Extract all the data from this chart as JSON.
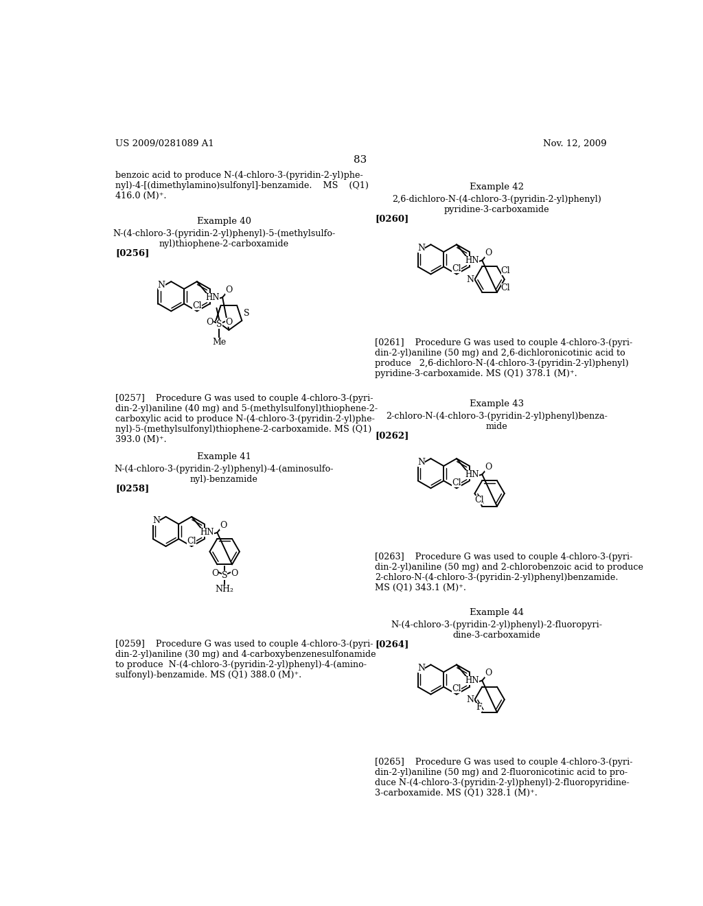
{
  "page_number": "83",
  "header_left": "US 2009/0281089 A1",
  "header_right": "Nov. 12, 2009",
  "background_color": "#ffffff",
  "text_color": "#000000",
  "left_column": {
    "intro_text": "benzoic acid to produce N-(4-chloro-3-(pyridin-2-yl)phe-\nnyl)-4-[(dimethylamino)sulfonyl]-benzamide.    MS    (Q1)\n416.0 (M)⁺.",
    "example40_title": "Example 40",
    "example40_name": "N-(4-chloro-3-(pyridin-2-yl)phenyl)-5-(methylsulfo-\nnyl)thiophene-2-carboxamide",
    "example40_ref": "[0256]",
    "example40_desc": "[0257]    Procedure G was used to couple 4-chloro-3-(pyri-\ndin-2-yl)aniline (40 mg) and 5-(methylsulfonyl)thiophene-2-\ncarboxylic acid to produce N-(4-chloro-3-(pyridin-2-yl)phe-\nnyl)-5-(methylsulfonyl)thiophene-2-carboxamide. MS (Q1)\n393.0 (M)⁺.",
    "example41_title": "Example 41",
    "example41_name": "N-(4-chloro-3-(pyridin-2-yl)phenyl)-4-(aminosulfo-\nnyl)-benzamide",
    "example41_ref": "[0258]",
    "example41_desc": "[0259]    Procedure G was used to couple 4-chloro-3-(pyri-\ndin-2-yl)aniline (30 mg) and 4-carboxybenzenesulfonamide\nto produce  N-(4-chloro-3-(pyridin-2-yl)phenyl)-4-(amino-\nsulfonyl)-benzamide. MS (Q1) 388.0 (M)⁺."
  },
  "right_column": {
    "example42_title": "Example 42",
    "example42_name": "2,6-dichloro-N-(4-chloro-3-(pyridin-2-yl)phenyl)\npyridine-3-carboxamide",
    "example42_ref": "[0260]",
    "example42_desc": "[0261]    Procedure G was used to couple 4-chloro-3-(pyri-\ndin-2-yl)aniline (50 mg) and 2,6-dichloronicotinic acid to\nproduce   2,6-dichloro-N-(4-chloro-3-(pyridin-2-yl)phenyl)\npyridine-3-carboxamide. MS (Q1) 378.1 (M)⁺.",
    "example43_title": "Example 43",
    "example43_name": "2-chloro-N-(4-chloro-3-(pyridin-2-yl)phenyl)benza-\nmide",
    "example43_ref": "[0262]",
    "example43_desc": "[0263]    Procedure G was used to couple 4-chloro-3-(pyri-\ndin-2-yl)aniline (50 mg) and 2-chlorobenzoic acid to produce\n2-chloro-N-(4-chloro-3-(pyridin-2-yl)phenyl)benzamide.\nMS (Q1) 343.1 (M)⁺.",
    "example44_title": "Example 44",
    "example44_name": "N-(4-chloro-3-(pyridin-2-yl)phenyl)-2-fluoropyri-\ndine-3-carboxamide",
    "example44_ref": "[0264]",
    "example44_desc": "[0265]    Procedure G was used to couple 4-chloro-3-(pyri-\ndin-2-yl)aniline (50 mg) and 2-fluoronicotinic acid to pro-\nduce N-(4-chloro-3-(pyridin-2-yl)phenyl)-2-fluoropyridine-\n3-carboxamide. MS (Q1) 328.1 (M)⁺."
  }
}
